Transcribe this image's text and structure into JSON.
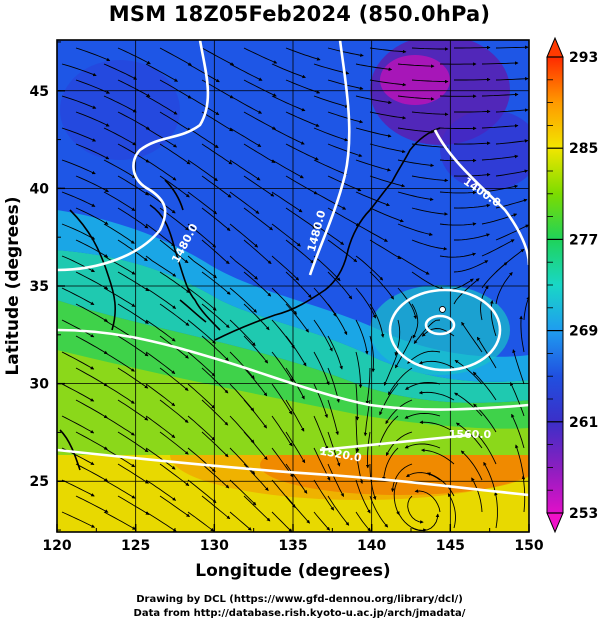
{
  "title": "MSM 18Z05Feb2024 (850.0hPa)",
  "map": {
    "lon_range": [
      120,
      150
    ],
    "lat_range": [
      22.4,
      47.6
    ],
    "xlabel": "Longitude (degrees)",
    "ylabel": "Latitude  (degrees)",
    "xticks": [
      "120",
      "125",
      "130",
      "135",
      "140",
      "145",
      "150"
    ],
    "yticks": [
      "25",
      "30",
      "35",
      "40",
      "45"
    ],
    "grid": true,
    "contour_labels": [
      "1480.0",
      "1480.0",
      "1400.0",
      "1520.0",
      "1560.0"
    ],
    "low_center": {
      "lon": 144.5,
      "lat": 33.8
    }
  },
  "colorbar": {
    "min": 253,
    "max": 293,
    "ticks": [
      "293",
      "285",
      "277",
      "269",
      "261",
      "253"
    ],
    "colors": [
      "#ff2a00",
      "#ff9a00",
      "#f2e600",
      "#7cdc00",
      "#1fd35a",
      "#19d7c6",
      "#1f9cf0",
      "#2050e0",
      "#3b2fc8",
      "#8a1fc0",
      "#e010c8"
    ]
  },
  "credit": {
    "line1": "Drawing by DCL (https://www.gfd-dennou.org/library/dcl/)",
    "line2": "Data from http://database.rish.kyoto-u.ac.jp/arch/jmadata/"
  }
}
